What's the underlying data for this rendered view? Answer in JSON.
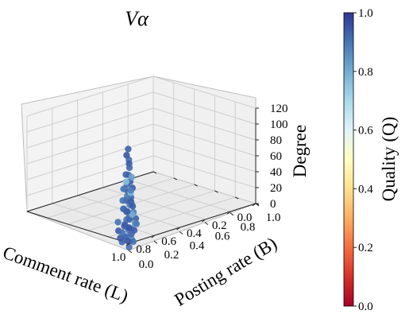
{
  "chart_data": {
    "type": "scatter3d",
    "title": "Vα",
    "axes": {
      "x": {
        "label": "Comment rate (L)",
        "range": [
          0.0,
          1.0
        ],
        "ticks": [
          "0.0",
          "0.2",
          "0.4",
          "0.6",
          "0.8",
          "1.0"
        ]
      },
      "y": {
        "label": "Posting rate (B)",
        "range": [
          0.0,
          1.0
        ],
        "ticks": [
          "0.0",
          "0.2",
          "0.4",
          "0.6",
          "0.8",
          "1.0"
        ]
      },
      "z": {
        "label": "Degree",
        "range": [
          0,
          120
        ],
        "ticks": [
          "0",
          "20",
          "40",
          "60",
          "80",
          "100",
          "120"
        ]
      }
    },
    "colorbar": {
      "label": "Quality (Q)",
      "range": [
        0.0,
        1.0
      ],
      "ticks": [
        "0.0",
        "0.2",
        "0.4",
        "0.6",
        "0.8",
        "1.0"
      ],
      "colormap": "RdYlBu",
      "stops": [
        "#a50026",
        "#d73027",
        "#f46d43",
        "#fdae61",
        "#fee090",
        "#ffffbf",
        "#e0f3f8",
        "#abd9e9",
        "#74add1",
        "#4575b4",
        "#313695"
      ]
    },
    "grid": true,
    "points": [
      {
        "x": 0.05,
        "y": 0.02,
        "z": 14,
        "q": 0.9
      },
      {
        "x": 0.08,
        "y": 0.04,
        "z": 10,
        "q": 0.92
      },
      {
        "x": 0.12,
        "y": 0.03,
        "z": 8,
        "q": 0.95
      },
      {
        "x": 0.06,
        "y": 0.07,
        "z": 20,
        "q": 0.88
      },
      {
        "x": 0.1,
        "y": 0.05,
        "z": 25,
        "q": 0.93
      },
      {
        "x": 0.03,
        "y": 0.06,
        "z": 6,
        "q": 0.9
      },
      {
        "x": 0.07,
        "y": 0.1,
        "z": 16,
        "q": 0.94
      },
      {
        "x": 0.14,
        "y": 0.06,
        "z": 12,
        "q": 0.91
      },
      {
        "x": 0.04,
        "y": 0.03,
        "z": 22,
        "q": 0.89
      },
      {
        "x": 0.09,
        "y": 0.08,
        "z": 30,
        "q": 0.92
      },
      {
        "x": 0.11,
        "y": 0.09,
        "z": 18,
        "q": 0.96
      },
      {
        "x": 0.02,
        "y": 0.04,
        "z": 11,
        "q": 0.87
      },
      {
        "x": 0.13,
        "y": 0.02,
        "z": 28,
        "q": 0.9
      },
      {
        "x": 0.06,
        "y": 0.05,
        "z": 35,
        "q": 0.93
      },
      {
        "x": 0.08,
        "y": 0.06,
        "z": 4,
        "q": 0.95
      },
      {
        "x": 0.05,
        "y": 0.09,
        "z": 26,
        "q": 0.85
      },
      {
        "x": 0.1,
        "y": 0.07,
        "z": 40,
        "q": 0.92
      },
      {
        "x": 0.07,
        "y": 0.04,
        "z": 33,
        "q": 0.9
      },
      {
        "x": 0.12,
        "y": 0.08,
        "z": 38,
        "q": 0.94
      },
      {
        "x": 0.04,
        "y": 0.07,
        "z": 42,
        "q": 0.88
      },
      {
        "x": 0.09,
        "y": 0.03,
        "z": 46,
        "q": 0.93
      },
      {
        "x": 0.06,
        "y": 0.08,
        "z": 48,
        "q": 0.95
      },
      {
        "x": 0.11,
        "y": 0.05,
        "z": 44,
        "q": 0.91
      },
      {
        "x": 0.08,
        "y": 0.09,
        "z": 36,
        "q": 0.8
      },
      {
        "x": 0.05,
        "y": 0.05,
        "z": 52,
        "q": 0.9
      },
      {
        "x": 0.1,
        "y": 0.1,
        "z": 50,
        "q": 0.93
      },
      {
        "x": 0.07,
        "y": 0.07,
        "z": 56,
        "q": 0.92
      },
      {
        "x": 0.09,
        "y": 0.06,
        "z": 60,
        "q": 0.89
      },
      {
        "x": 0.06,
        "y": 0.03,
        "z": 58,
        "q": 0.94
      },
      {
        "x": 0.08,
        "y": 0.08,
        "z": 64,
        "q": 0.78
      },
      {
        "x": 0.07,
        "y": 0.05,
        "z": 68,
        "q": 0.93
      },
      {
        "x": 0.1,
        "y": 0.04,
        "z": 70,
        "q": 0.91
      },
      {
        "x": 0.05,
        "y": 0.07,
        "z": 72,
        "q": 0.95
      },
      {
        "x": 0.09,
        "y": 0.09,
        "z": 66,
        "q": 0.88
      },
      {
        "x": 0.08,
        "y": 0.05,
        "z": 76,
        "q": 0.92
      },
      {
        "x": 0.06,
        "y": 0.06,
        "z": 80,
        "q": 0.94
      },
      {
        "x": 0.07,
        "y": 0.08,
        "z": 84,
        "q": 0.82
      },
      {
        "x": 0.09,
        "y": 0.05,
        "z": 88,
        "q": 0.93
      },
      {
        "x": 0.05,
        "y": 0.04,
        "z": 90,
        "q": 0.9
      },
      {
        "x": 0.08,
        "y": 0.07,
        "z": 96,
        "q": 0.92
      },
      {
        "x": 0.07,
        "y": 0.06,
        "z": 102,
        "q": 0.94
      },
      {
        "x": 0.06,
        "y": 0.05,
        "z": 108,
        "q": 0.91
      },
      {
        "x": 0.08,
        "y": 0.06,
        "z": 120,
        "q": 0.93
      },
      {
        "x": 0.07,
        "y": 0.04,
        "z": 114,
        "q": 0.95
      },
      {
        "x": 0.1,
        "y": 0.06,
        "z": 78,
        "q": 0.76
      },
      {
        "x": 0.04,
        "y": 0.05,
        "z": 62,
        "q": 0.92
      },
      {
        "x": 0.12,
        "y": 0.05,
        "z": 54,
        "q": 0.9
      },
      {
        "x": 0.03,
        "y": 0.08,
        "z": 34,
        "q": 0.93
      },
      {
        "x": 0.13,
        "y": 0.07,
        "z": 20,
        "q": 0.94
      },
      {
        "x": 0.02,
        "y": 0.02,
        "z": 2,
        "q": 0.91
      },
      {
        "x": 0.15,
        "y": 0.04,
        "z": 15,
        "q": 0.95
      },
      {
        "x": 0.06,
        "y": 0.11,
        "z": 24,
        "q": 0.89
      },
      {
        "x": 0.11,
        "y": 0.11,
        "z": 9,
        "q": 0.93
      },
      {
        "x": 0.09,
        "y": 0.02,
        "z": 5,
        "q": 0.92
      }
    ]
  }
}
